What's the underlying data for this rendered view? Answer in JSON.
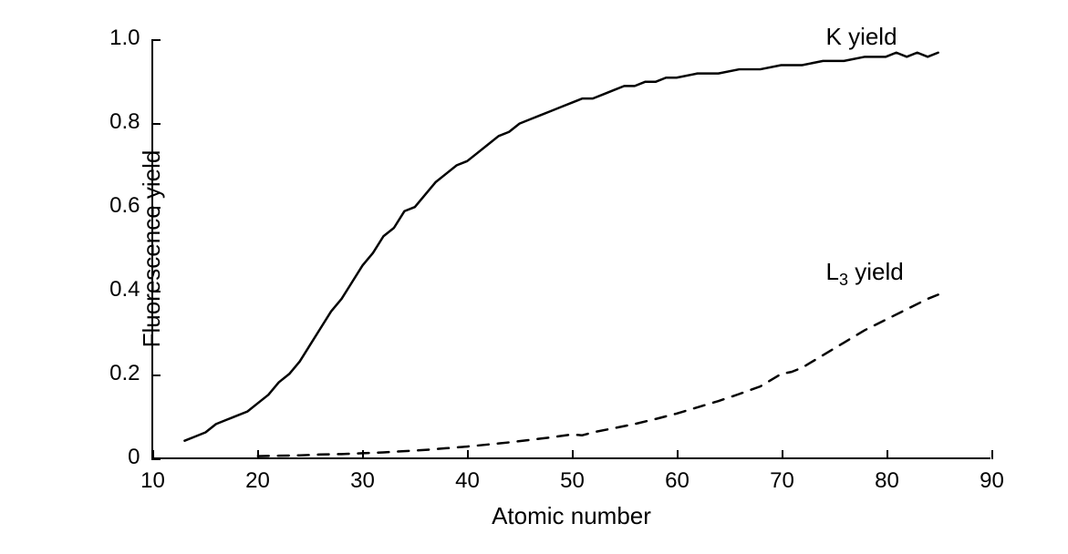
{
  "chart": {
    "type": "line",
    "x_axis_label": "Atomic number",
    "y_axis_label": "Fluorescence yield",
    "xlim": [
      10,
      90
    ],
    "ylim": [
      0,
      1.0
    ],
    "xticks": [
      10,
      20,
      30,
      40,
      50,
      60,
      70,
      80,
      90
    ],
    "yticks": [
      0,
      0.2,
      0.4,
      0.6,
      0.8,
      1.0
    ],
    "tick_fontsize": 24,
    "axis_title_fontsize": 26,
    "label_fontsize": 26,
    "background_color": "#ffffff",
    "axis_color": "#000000",
    "series": [
      {
        "name": "K yield",
        "label_html": "K yield",
        "label_x": 82,
        "label_y": 0.98,
        "color": "#000000",
        "line_width": 2.5,
        "dash": "none",
        "data": [
          [
            13,
            0.04
          ],
          [
            14,
            0.05
          ],
          [
            15,
            0.06
          ],
          [
            16,
            0.08
          ],
          [
            17,
            0.09
          ],
          [
            18,
            0.1
          ],
          [
            19,
            0.11
          ],
          [
            20,
            0.13
          ],
          [
            21,
            0.15
          ],
          [
            22,
            0.18
          ],
          [
            23,
            0.2
          ],
          [
            24,
            0.23
          ],
          [
            25,
            0.27
          ],
          [
            26,
            0.31
          ],
          [
            27,
            0.35
          ],
          [
            28,
            0.38
          ],
          [
            29,
            0.42
          ],
          [
            30,
            0.46
          ],
          [
            31,
            0.49
          ],
          [
            32,
            0.53
          ],
          [
            33,
            0.55
          ],
          [
            34,
            0.59
          ],
          [
            35,
            0.6
          ],
          [
            36,
            0.63
          ],
          [
            37,
            0.66
          ],
          [
            38,
            0.68
          ],
          [
            39,
            0.7
          ],
          [
            40,
            0.71
          ],
          [
            41,
            0.73
          ],
          [
            42,
            0.75
          ],
          [
            43,
            0.77
          ],
          [
            44,
            0.78
          ],
          [
            45,
            0.8
          ],
          [
            46,
            0.81
          ],
          [
            47,
            0.82
          ],
          [
            48,
            0.83
          ],
          [
            49,
            0.84
          ],
          [
            50,
            0.85
          ],
          [
            51,
            0.86
          ],
          [
            52,
            0.86
          ],
          [
            53,
            0.87
          ],
          [
            54,
            0.88
          ],
          [
            55,
            0.89
          ],
          [
            56,
            0.89
          ],
          [
            57,
            0.9
          ],
          [
            58,
            0.9
          ],
          [
            59,
            0.91
          ],
          [
            60,
            0.91
          ],
          [
            62,
            0.92
          ],
          [
            64,
            0.92
          ],
          [
            66,
            0.93
          ],
          [
            68,
            0.93
          ],
          [
            70,
            0.94
          ],
          [
            72,
            0.94
          ],
          [
            74,
            0.95
          ],
          [
            76,
            0.95
          ],
          [
            78,
            0.96
          ],
          [
            80,
            0.96
          ],
          [
            81,
            0.97
          ],
          [
            82,
            0.96
          ],
          [
            83,
            0.97
          ],
          [
            84,
            0.96
          ],
          [
            85,
            0.97
          ]
        ]
      },
      {
        "name": "L3 yield",
        "label_html": "L<sub>3</sub> yield",
        "label_x": 82,
        "label_y": 0.42,
        "color": "#000000",
        "line_width": 2.5,
        "dash": "12,10",
        "data": [
          [
            20,
            0.003
          ],
          [
            22,
            0.004
          ],
          [
            24,
            0.005
          ],
          [
            26,
            0.007
          ],
          [
            28,
            0.008
          ],
          [
            30,
            0.01
          ],
          [
            32,
            0.012
          ],
          [
            34,
            0.015
          ],
          [
            36,
            0.018
          ],
          [
            38,
            0.022
          ],
          [
            40,
            0.026
          ],
          [
            42,
            0.031
          ],
          [
            44,
            0.036
          ],
          [
            46,
            0.042
          ],
          [
            48,
            0.048
          ],
          [
            50,
            0.055
          ],
          [
            51,
            0.053
          ],
          [
            52,
            0.06
          ],
          [
            54,
            0.07
          ],
          [
            56,
            0.08
          ],
          [
            58,
            0.092
          ],
          [
            60,
            0.105
          ],
          [
            62,
            0.12
          ],
          [
            64,
            0.135
          ],
          [
            66,
            0.152
          ],
          [
            68,
            0.17
          ],
          [
            70,
            0.2
          ],
          [
            71,
            0.205
          ],
          [
            72,
            0.215
          ],
          [
            74,
            0.245
          ],
          [
            76,
            0.275
          ],
          [
            78,
            0.305
          ],
          [
            80,
            0.33
          ],
          [
            82,
            0.355
          ],
          [
            84,
            0.38
          ],
          [
            85,
            0.39
          ]
        ]
      }
    ]
  }
}
